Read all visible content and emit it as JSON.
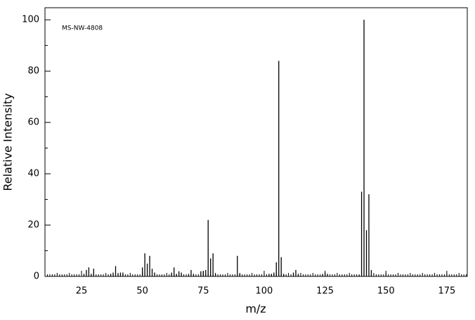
{
  "chart_data": {
    "type": "stem",
    "annotation": "MS-NW-4808",
    "xlabel": "m/z",
    "ylabel": "Relative Intensity",
    "x": [
      26,
      27,
      28,
      29,
      30,
      37,
      38,
      39,
      40,
      41,
      42,
      50,
      51,
      52,
      53,
      54,
      55,
      62,
      63,
      64,
      65,
      66,
      69,
      70,
      71,
      74,
      75,
      76,
      77,
      78,
      79,
      80,
      89,
      90,
      102,
      103,
      104,
      105,
      106,
      107,
      108,
      112,
      113,
      114,
      124,
      125,
      126,
      139,
      140,
      141,
      142,
      143,
      144
    ],
    "values": [
      1,
      2.5,
      3.5,
      1,
      3,
      1,
      1.5,
      4,
      1,
      1.5,
      1.5,
      3.5,
      9,
      5,
      8,
      3,
      1.5,
      1.5,
      3.5,
      1,
      2,
      1.5,
      1,
      2.5,
      1,
      2,
      2,
      2.5,
      22,
      7,
      9,
      1,
      8,
      1,
      1,
      1,
      1.5,
      5.5,
      84,
      7.5,
      1,
      1.5,
      2.5,
      1,
      1,
      1.5,
      1,
      0.5,
      33,
      100,
      18,
      32,
      2.5
    ],
    "color": "#000000",
    "xlim": [
      10,
      183.4
    ],
    "xticks": [
      25,
      50,
      75,
      100,
      125,
      150,
      175
    ],
    "ylim": [
      0,
      104.7
    ],
    "yticks": [
      0,
      20,
      40,
      60,
      80,
      100
    ]
  }
}
